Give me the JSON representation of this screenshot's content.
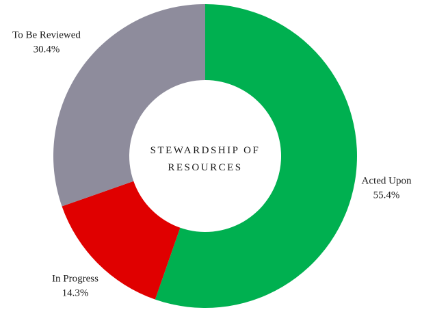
{
  "chart_data": {
    "type": "donut",
    "title": "STEWARDSHIP OF RESOURCES",
    "categories": [
      "Acted Upon",
      "In Progress",
      "To Be Reviewed"
    ],
    "values": [
      55.4,
      14.3,
      30.4
    ],
    "value_labels": [
      "55.4%",
      "14.3%",
      "30.4%"
    ],
    "colors": [
      "#00b050",
      "#e00000",
      "#8e8c9c"
    ]
  }
}
